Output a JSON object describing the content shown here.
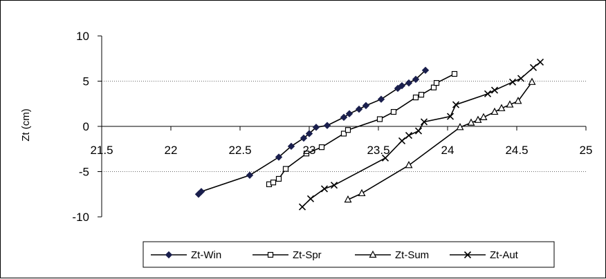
{
  "chart_data": {
    "type": "line",
    "title": "",
    "xlabel": "",
    "ylabel": "Zt (cm)",
    "xlim": [
      21.5,
      25
    ],
    "ylim": [
      -10,
      10
    ],
    "x_ticks": [
      "21.5",
      "22",
      "22.5",
      "23",
      "23.5",
      "24",
      "24.5",
      "25"
    ],
    "y_ticks": [
      "10",
      "5",
      "0",
      "-5",
      "-10"
    ],
    "grid": "horizontal dotted at y=5 and y=-5",
    "legend_position": "bottom",
    "series": [
      {
        "name": "Zt-Win",
        "marker": "diamond-filled",
        "color": "#1a1f4d",
        "x": [
          22.2,
          22.22,
          22.57,
          22.78,
          22.87,
          22.96,
          23.0,
          23.05,
          23.13,
          23.25,
          23.29,
          23.36,
          23.41,
          23.52,
          23.64,
          23.67,
          23.72,
          23.77,
          23.84
        ],
        "y": [
          -7.5,
          -7.2,
          -5.4,
          -3.4,
          -2.2,
          -1.3,
          -0.8,
          -0.1,
          0.1,
          1.0,
          1.4,
          1.9,
          2.3,
          3.0,
          4.2,
          4.5,
          4.8,
          5.2,
          6.2
        ]
      },
      {
        "name": "Zt-Spr",
        "marker": "square-open",
        "color": "#000000",
        "x": [
          22.71,
          22.74,
          22.78,
          22.83,
          22.98,
          23.09,
          23.25,
          23.28,
          23.51,
          23.61,
          23.77,
          23.81,
          23.9,
          23.92,
          24.05
        ],
        "y": [
          -6.4,
          -6.2,
          -5.8,
          -4.7,
          -3.0,
          -2.3,
          -0.8,
          -0.4,
          0.8,
          1.6,
          3.2,
          3.5,
          4.3,
          4.8,
          5.8
        ]
      },
      {
        "name": "Zt-Sum",
        "marker": "triangle-open",
        "color": "#000000",
        "x": [
          23.28,
          23.38,
          23.72,
          24.09,
          24.17,
          24.22,
          24.26,
          24.34,
          24.39,
          24.45,
          24.51,
          24.61
        ],
        "y": [
          -8.1,
          -7.4,
          -4.3,
          -0.1,
          0.4,
          0.7,
          1.0,
          1.6,
          2.0,
          2.4,
          2.8,
          4.9
        ]
      },
      {
        "name": "Zt-Aut",
        "marker": "x",
        "color": "#000000",
        "x": [
          22.95,
          23.01,
          23.11,
          23.18,
          23.55,
          23.67,
          23.72,
          23.79,
          23.83,
          24.02,
          24.06,
          24.29,
          24.34,
          24.47,
          24.53,
          24.62,
          24.67
        ],
        "y": [
          -8.9,
          -8.0,
          -6.9,
          -6.5,
          -3.5,
          -1.6,
          -1.0,
          -0.5,
          0.5,
          1.1,
          2.4,
          3.6,
          4.0,
          4.9,
          5.3,
          6.5,
          7.1
        ]
      }
    ]
  }
}
